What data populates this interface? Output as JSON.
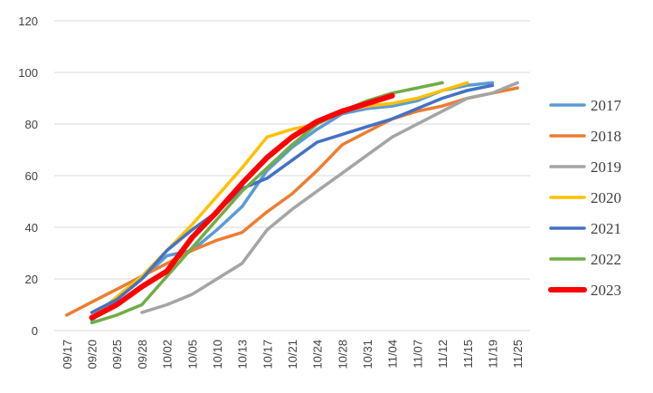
{
  "chart_data": {
    "type": "line",
    "categories": [
      "09/17",
      "09/20",
      "09/25",
      "09/28",
      "10/02",
      "10/05",
      "10/10",
      "10/13",
      "10/17",
      "10/21",
      "10/24",
      "10/28",
      "10/31",
      "11/04",
      "11/07",
      "11/12",
      "11/15",
      "11/19",
      "11/25"
    ],
    "ylim": [
      0,
      120
    ],
    "yticks": [
      0,
      20,
      40,
      60,
      80,
      100,
      120
    ],
    "grid": true,
    "legend_position": "right",
    "series": [
      {
        "name": "2017",
        "color": "#5B9BD5",
        "values": [
          null,
          4,
          12,
          20,
          29,
          31,
          39,
          48,
          62,
          71,
          78,
          84,
          86,
          87,
          89,
          93,
          95,
          96,
          null
        ]
      },
      {
        "name": "2018",
        "color": "#ED7D31",
        "values": [
          6,
          11,
          16,
          21,
          26,
          31,
          35,
          38,
          46,
          53,
          62,
          72,
          77,
          82,
          85,
          87,
          90,
          92,
          94
        ]
      },
      {
        "name": "2019",
        "color": "#A5A5A5",
        "values": [
          null,
          null,
          null,
          7,
          10,
          14,
          20,
          26,
          39,
          47,
          54,
          61,
          68,
          75,
          80,
          85,
          90,
          92,
          96
        ]
      },
      {
        "name": "2020",
        "color": "#FFC000",
        "values": [
          null,
          5,
          13,
          21,
          31,
          41,
          52,
          63,
          75,
          78,
          80,
          85,
          87,
          88,
          90,
          93,
          96,
          null,
          null
        ]
      },
      {
        "name": "2021",
        "color": "#4472C4",
        "values": [
          null,
          7,
          12,
          20,
          31,
          39,
          46,
          55,
          59,
          66,
          73,
          76,
          79,
          82,
          86,
          90,
          93,
          95,
          null
        ]
      },
      {
        "name": "2022",
        "color": "#70AD47",
        "values": [
          null,
          3,
          6,
          10,
          21,
          32,
          43,
          54,
          63,
          72,
          80,
          85,
          89,
          92,
          94,
          96,
          null,
          null,
          null
        ]
      },
      {
        "name": "2023",
        "color": "#FF0000",
        "values": [
          null,
          5,
          10,
          17,
          23,
          36,
          46,
          57,
          67,
          75,
          81,
          85,
          88,
          91,
          null,
          null,
          null,
          null,
          null
        ]
      }
    ]
  }
}
